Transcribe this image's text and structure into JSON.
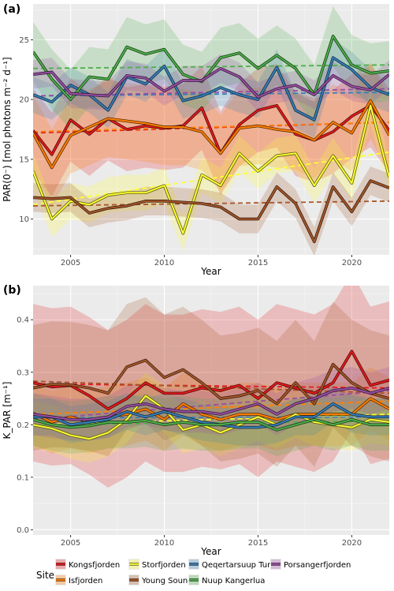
{
  "chart_data": [
    {
      "panel": "(a)",
      "type": "line",
      "xlabel": "Year",
      "ylabel": "PAR(0⁻) [mol photons m⁻² d⁻¹]",
      "xlim": [
        2003,
        2022
      ],
      "ylim": [
        7,
        28
      ],
      "xticks": [
        2005,
        2010,
        2015,
        2020
      ],
      "yticks": [
        10,
        15,
        20,
        25
      ],
      "grid": true,
      "x": [
        2003,
        2004,
        2005,
        2006,
        2007,
        2008,
        2009,
        2010,
        2011,
        2012,
        2013,
        2014,
        2015,
        2016,
        2017,
        2018,
        2019,
        2020,
        2021,
        2022
      ],
      "series": [
        {
          "name": "Kongsfjorden",
          "color": "#e41a1c",
          "values": [
            17.4,
            15.4,
            18.3,
            17.1,
            18.4,
            17.5,
            17.8,
            17.6,
            17.8,
            19.3,
            15.5,
            17.9,
            19.1,
            19.5,
            17.1,
            16.6,
            17.3,
            18.6,
            19.5,
            17.4
          ],
          "trend": [
            17.2,
            18.1
          ],
          "band": 3.5
        },
        {
          "name": "Isfjorden",
          "color": "#ff7f00",
          "values": [
            17.2,
            14.3,
            17.0,
            17.7,
            18.4,
            18.2,
            18.0,
            17.7,
            17.7,
            17.3,
            15.5,
            17.6,
            17.8,
            17.5,
            17.3,
            16.6,
            18.1,
            17.2,
            19.9,
            17.0
          ],
          "trend": [
            17.3,
            18.1
          ],
          "band": 3.2
        },
        {
          "name": "Storfjorden",
          "color": "#ffff33",
          "values": [
            14.0,
            10.0,
            11.5,
            11.2,
            12.0,
            12.2,
            12.2,
            12.8,
            8.8,
            13.7,
            12.8,
            15.5,
            14.0,
            15.3,
            15.5,
            12.8,
            15.3,
            13.0,
            19.5,
            13.5
          ],
          "trend": [
            11.2,
            15.6
          ],
          "band": 1.5
        },
        {
          "name": "Young Sound",
          "color": "#a65628",
          "values": [
            11.8,
            11.7,
            11.8,
            10.5,
            10.9,
            11.1,
            11.5,
            11.5,
            11.4,
            11.3,
            11.0,
            10.0,
            10.0,
            12.7,
            11.3,
            8.1,
            12.7,
            10.6,
            13.2,
            12.6
          ],
          "trend": [
            11.1,
            11.5
          ],
          "band": 1.2
        },
        {
          "name": "Qeqertarsuup Tunua",
          "color": "#377eb8",
          "values": [
            20.4,
            19.8,
            21.2,
            20.4,
            19.1,
            21.9,
            21.3,
            22.8,
            19.9,
            20.3,
            21.0,
            20.4,
            20.0,
            22.7,
            19.1,
            18.3,
            23.5,
            22.5,
            21.0,
            20.4
          ],
          "trend": [
            20.3,
            20.6
          ],
          "band": 1.5
        },
        {
          "name": "Nuup Kangerlua",
          "color": "#4daf4a",
          "values": [
            24.0,
            21.7,
            20.0,
            21.9,
            21.7,
            24.4,
            23.8,
            24.2,
            22.1,
            21.5,
            23.5,
            23.9,
            22.6,
            23.7,
            22.6,
            20.4,
            25.3,
            22.9,
            22.2,
            22.4
          ],
          "trend": [
            22.6,
            22.9
          ],
          "band": 2.5
        },
        {
          "name": "Porsangerfjorden",
          "color": "#984ea3",
          "values": [
            22.1,
            22.3,
            20.5,
            20.4,
            20.3,
            22.0,
            21.8,
            20.7,
            21.6,
            21.6,
            22.6,
            21.9,
            20.2,
            20.9,
            21.2,
            20.4,
            22.0,
            21.1,
            20.8,
            22.1
          ],
          "trend": [
            20.3,
            20.9
          ],
          "band": 1.2
        }
      ]
    },
    {
      "panel": "(b)",
      "type": "line",
      "xlabel": "Year",
      "ylabel": "K_PAR [m⁻¹]",
      "xlim": [
        2003,
        2022
      ],
      "ylim": [
        -0.01,
        0.465
      ],
      "xticks": [
        2005,
        2010,
        2015,
        2020
      ],
      "yticks": [
        0.0,
        0.1,
        0.2,
        0.3,
        0.4
      ],
      "ytick_labels": [
        "0.0",
        "0.1",
        "0.2",
        "0.3",
        "0.4"
      ],
      "grid": true,
      "x": [
        2003,
        2004,
        2005,
        2006,
        2007,
        2008,
        2009,
        2010,
        2011,
        2012,
        2013,
        2014,
        2015,
        2016,
        2017,
        2018,
        2019,
        2020,
        2021,
        2022
      ],
      "series": [
        {
          "name": "Kongsfjorden",
          "color": "#e41a1c",
          "values": [
            0.28,
            0.272,
            0.275,
            0.255,
            0.23,
            0.25,
            0.28,
            0.26,
            0.26,
            0.27,
            0.265,
            0.275,
            0.25,
            0.28,
            0.27,
            0.26,
            0.28,
            0.34,
            0.275,
            0.285
          ],
          "trend": [
            0.278,
            0.27
          ],
          "band": 0.15
        },
        {
          "name": "Isfjorden",
          "color": "#ff7f00",
          "values": [
            0.222,
            0.205,
            0.215,
            0.205,
            0.215,
            0.22,
            0.23,
            0.21,
            0.24,
            0.22,
            0.21,
            0.22,
            0.22,
            0.21,
            0.22,
            0.22,
            0.22,
            0.22,
            0.25,
            0.23
          ],
          "trend": [
            0.22,
            0.245
          ],
          "band": 0.06
        },
        {
          "name": "Storfjorden",
          "color": "#ffff33",
          "values": [
            0.2,
            0.193,
            0.18,
            0.173,
            0.185,
            0.21,
            0.255,
            0.23,
            0.19,
            0.2,
            0.185,
            0.2,
            0.215,
            0.2,
            0.22,
            0.205,
            0.2,
            0.195,
            0.21,
            0.205
          ],
          "trend": [
            0.2,
            0.22
          ],
          "band": 0.045
        },
        {
          "name": "Young Sound",
          "color": "#a65628",
          "values": [
            0.27,
            0.277,
            0.276,
            0.27,
            0.26,
            0.31,
            0.323,
            0.29,
            0.305,
            0.28,
            0.25,
            0.255,
            0.265,
            0.24,
            0.28,
            0.24,
            0.315,
            0.28,
            0.26,
            0.25
          ],
          "trend": [
            0.283,
            0.26
          ],
          "band": 0.12
        },
        {
          "name": "Qeqertarsuup Tunua",
          "color": "#377eb8",
          "values": [
            0.215,
            0.215,
            0.2,
            0.205,
            0.21,
            0.225,
            0.215,
            0.225,
            0.215,
            0.205,
            0.2,
            0.195,
            0.195,
            0.2,
            0.215,
            0.215,
            0.24,
            0.22,
            0.215,
            0.215
          ],
          "trend": [
            0.213,
            0.215
          ],
          "band": 0.035
        },
        {
          "name": "Nuup Kangerlua",
          "color": "#4daf4a",
          "values": [
            0.21,
            0.2,
            0.195,
            0.198,
            0.205,
            0.205,
            0.208,
            0.2,
            0.205,
            0.2,
            0.2,
            0.205,
            0.205,
            0.19,
            0.2,
            0.21,
            0.2,
            0.21,
            0.2,
            0.2
          ],
          "trend": [
            0.2,
            0.207
          ],
          "band": 0.05
        },
        {
          "name": "Porsangerfjorden",
          "color": "#984ea3",
          "values": [
            0.22,
            0.215,
            0.21,
            0.21,
            0.215,
            0.235,
            0.24,
            0.23,
            0.225,
            0.225,
            0.22,
            0.23,
            0.24,
            0.22,
            0.24,
            0.25,
            0.265,
            0.27,
            0.26,
            0.27
          ],
          "trend": [
            0.21,
            0.265
          ],
          "band": 0.04
        }
      ]
    }
  ],
  "legend": {
    "title": "Site",
    "items": [
      {
        "label": "Kongsfjorden",
        "color": "#e41a1c"
      },
      {
        "label": "Isfjorden",
        "color": "#ff7f00"
      },
      {
        "label": "Storfjorden",
        "color": "#ffff33"
      },
      {
        "label": "Young Sound",
        "color": "#a65628"
      },
      {
        "label": "Qeqertarsuup Tunua",
        "color": "#377eb8"
      },
      {
        "label": "Nuup Kangerlua",
        "color": "#4daf4a"
      },
      {
        "label": "Porsangerfjorden",
        "color": "#984ea3"
      }
    ]
  }
}
